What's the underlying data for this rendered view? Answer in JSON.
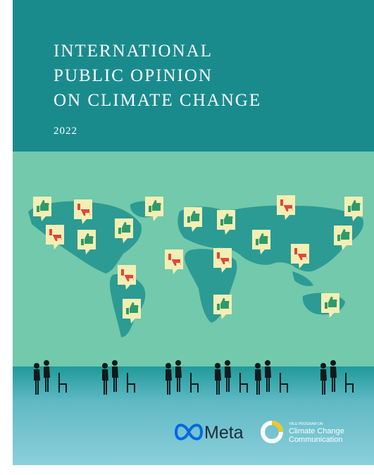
{
  "title": [
    "INTERNATIONAL",
    "PUBLIC OPINION",
    "ON CLIMATE CHANGE"
  ],
  "year": "2022",
  "logos": {
    "meta": "Meta",
    "yale": {
      "line1": "YALE PROGRAM ON",
      "line2": "Climate Change",
      "line3": "Communication"
    }
  }
}
